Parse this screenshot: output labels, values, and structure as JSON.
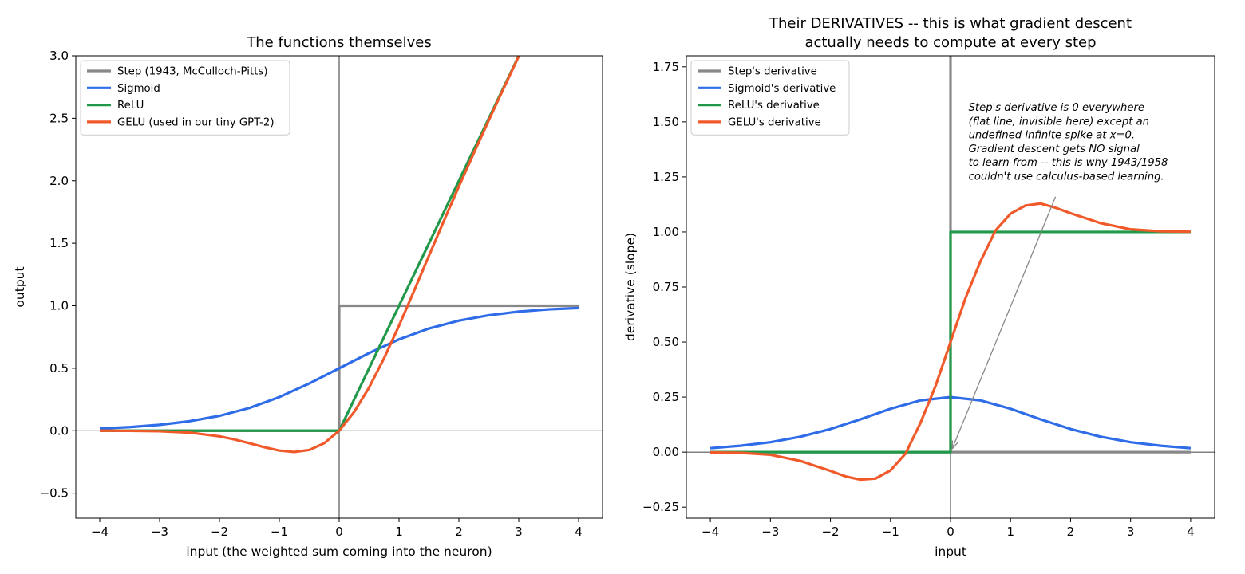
{
  "figure": {
    "background": "#ffffff"
  },
  "chart_data": [
    {
      "type": "line",
      "title": "The functions themselves",
      "xlabel": "input (the weighted sum coming into the neuron)",
      "ylabel": "output",
      "xlim": [
        -4.4,
        4.4
      ],
      "ylim": [
        -0.7,
        3.0
      ],
      "xticks": [
        -4,
        -3,
        -2,
        -1,
        0,
        1,
        2,
        3,
        4
      ],
      "xtick_labels": [
        "−4",
        "−3",
        "−2",
        "−1",
        "0",
        "1",
        "2",
        "3",
        "4"
      ],
      "yticks": [
        -0.5,
        0.0,
        0.5,
        1.0,
        1.5,
        2.0,
        2.5,
        3.0
      ],
      "ytick_labels": [
        "−0.5",
        "0.0",
        "0.5",
        "1.0",
        "1.5",
        "2.0",
        "2.5",
        "3.0"
      ],
      "grid": false,
      "axis_lines": {
        "x0": true,
        "y0": true
      },
      "legend": {
        "position": "top-left",
        "entries": [
          {
            "label": "Step (1943, McCulloch-Pitts)",
            "color": "#888888"
          },
          {
            "label": "Sigmoid",
            "color": "#2f6ce8"
          },
          {
            "label": "ReLU",
            "color": "#22994a"
          },
          {
            "label": "GELU (used in our tiny GPT-2)",
            "color": "#f05a2a"
          }
        ]
      },
      "series": [
        {
          "name": "Step (1943, McCulloch-Pitts)",
          "color": "#888888",
          "points": [
            [
              -4,
              0
            ],
            [
              0,
              0
            ],
            [
              0,
              1
            ],
            [
              4,
              1
            ]
          ]
        },
        {
          "name": "Sigmoid",
          "color": "#2f6ce8",
          "x": [
            -4,
            -3.5,
            -3,
            -2.5,
            -2,
            -1.5,
            -1,
            -0.5,
            0,
            0.5,
            1,
            1.5,
            2,
            2.5,
            3,
            3.5,
            4
          ],
          "y": [
            0.018,
            0.029,
            0.047,
            0.076,
            0.119,
            0.182,
            0.269,
            0.378,
            0.5,
            0.622,
            0.731,
            0.818,
            0.881,
            0.924,
            0.953,
            0.971,
            0.982
          ]
        },
        {
          "name": "ReLU",
          "color": "#22994a",
          "points": [
            [
              -4,
              0
            ],
            [
              0,
              0
            ],
            [
              3.0,
              3.0
            ]
          ]
        },
        {
          "name": "GELU (used in our tiny GPT-2)",
          "color": "#f05a2a",
          "x": [
            -4,
            -3.5,
            -3,
            -2.5,
            -2,
            -1.75,
            -1.5,
            -1.25,
            -1,
            -0.75,
            -0.5,
            -0.25,
            0,
            0.25,
            0.5,
            0.75,
            1,
            1.25,
            1.5,
            1.75,
            2,
            2.25,
            2.5,
            2.75,
            3.0,
            3.05
          ],
          "y": [
            0.0,
            -0.001,
            -0.004,
            -0.015,
            -0.045,
            -0.07,
            -0.1,
            -0.132,
            -0.159,
            -0.17,
            -0.154,
            -0.1,
            0.0,
            0.15,
            0.346,
            0.58,
            0.841,
            1.118,
            1.4,
            1.68,
            1.955,
            2.222,
            2.485,
            2.742,
            2.996,
            3.046
          ]
        }
      ]
    },
    {
      "type": "line",
      "title": "Their DERIVATIVES -- this is what gradient descent\nactually needs to compute at every step",
      "xlabel": "input",
      "ylabel": "derivative (slope)",
      "xlim": [
        -4.4,
        4.4
      ],
      "ylim": [
        -0.3,
        1.8
      ],
      "xticks": [
        -4,
        -3,
        -2,
        -1,
        0,
        1,
        2,
        3,
        4
      ],
      "xtick_labels": [
        "−4",
        "−3",
        "−2",
        "−1",
        "0",
        "1",
        "2",
        "3",
        "4"
      ],
      "yticks": [
        -0.25,
        0.0,
        0.25,
        0.5,
        0.75,
        1.0,
        1.25,
        1.5,
        1.75
      ],
      "ytick_labels": [
        "−0.25",
        "0.00",
        "0.25",
        "0.50",
        "0.75",
        "1.00",
        "1.25",
        "1.50",
        "1.75"
      ],
      "grid": false,
      "axis_lines": {
        "x0": true,
        "y0": true
      },
      "legend": {
        "position": "top-left",
        "entries": [
          {
            "label": "Step's derivative",
            "color": "#888888"
          },
          {
            "label": "Sigmoid's derivative",
            "color": "#2f6ce8"
          },
          {
            "label": "ReLU's derivative",
            "color": "#22994a"
          },
          {
            "label": "GELU's derivative",
            "color": "#f05a2a"
          }
        ]
      },
      "annotation": {
        "text": "Step's derivative is 0 everywhere\n(flat line, invisible here) except an\nundefined infinite spike at x=0.\nGradient descent gets NO signal\nto learn from -- this is why 1943/1958\ncouldn't use calculus-based learning.",
        "text_at": [
          0.3,
          1.55
        ],
        "arrow_from": [
          1.75,
          1.16
        ],
        "arrow_to": [
          0.0,
          0.0
        ]
      },
      "series": [
        {
          "name": "Step's derivative",
          "color": "#888888",
          "points": [
            [
              -4,
              0
            ],
            [
              0,
              0
            ],
            [
              0,
              1.8
            ],
            [
              0,
              0
            ],
            [
              4,
              0
            ]
          ]
        },
        {
          "name": "Sigmoid's derivative",
          "color": "#2f6ce8",
          "x": [
            -4,
            -3.5,
            -3,
            -2.5,
            -2,
            -1.5,
            -1,
            -0.5,
            0,
            0.5,
            1,
            1.5,
            2,
            2.5,
            3,
            3.5,
            4
          ],
          "y": [
            0.018,
            0.029,
            0.045,
            0.07,
            0.105,
            0.149,
            0.197,
            0.235,
            0.25,
            0.235,
            0.197,
            0.149,
            0.105,
            0.07,
            0.045,
            0.029,
            0.018
          ]
        },
        {
          "name": "ReLU's derivative",
          "color": "#22994a",
          "points": [
            [
              -4,
              0
            ],
            [
              0,
              0
            ],
            [
              0,
              1
            ],
            [
              4,
              1
            ]
          ]
        },
        {
          "name": "GELU's derivative",
          "color": "#f05a2a",
          "x": [
            -4,
            -3.5,
            -3,
            -2.5,
            -2,
            -1.75,
            -1.5,
            -1.25,
            -1,
            -0.75,
            -0.5,
            -0.25,
            0,
            0.25,
            0.5,
            0.75,
            1,
            1.25,
            1.5,
            1.75,
            2,
            2.5,
            3,
            3.5,
            4
          ],
          "y": [
            -0.001,
            -0.003,
            -0.012,
            -0.04,
            -0.085,
            -0.11,
            -0.125,
            -0.12,
            -0.083,
            -0.007,
            0.133,
            0.3,
            0.5,
            0.7,
            0.867,
            1.007,
            1.083,
            1.12,
            1.129,
            1.11,
            1.085,
            1.04,
            1.012,
            1.003,
            1.001
          ]
        }
      ]
    }
  ]
}
